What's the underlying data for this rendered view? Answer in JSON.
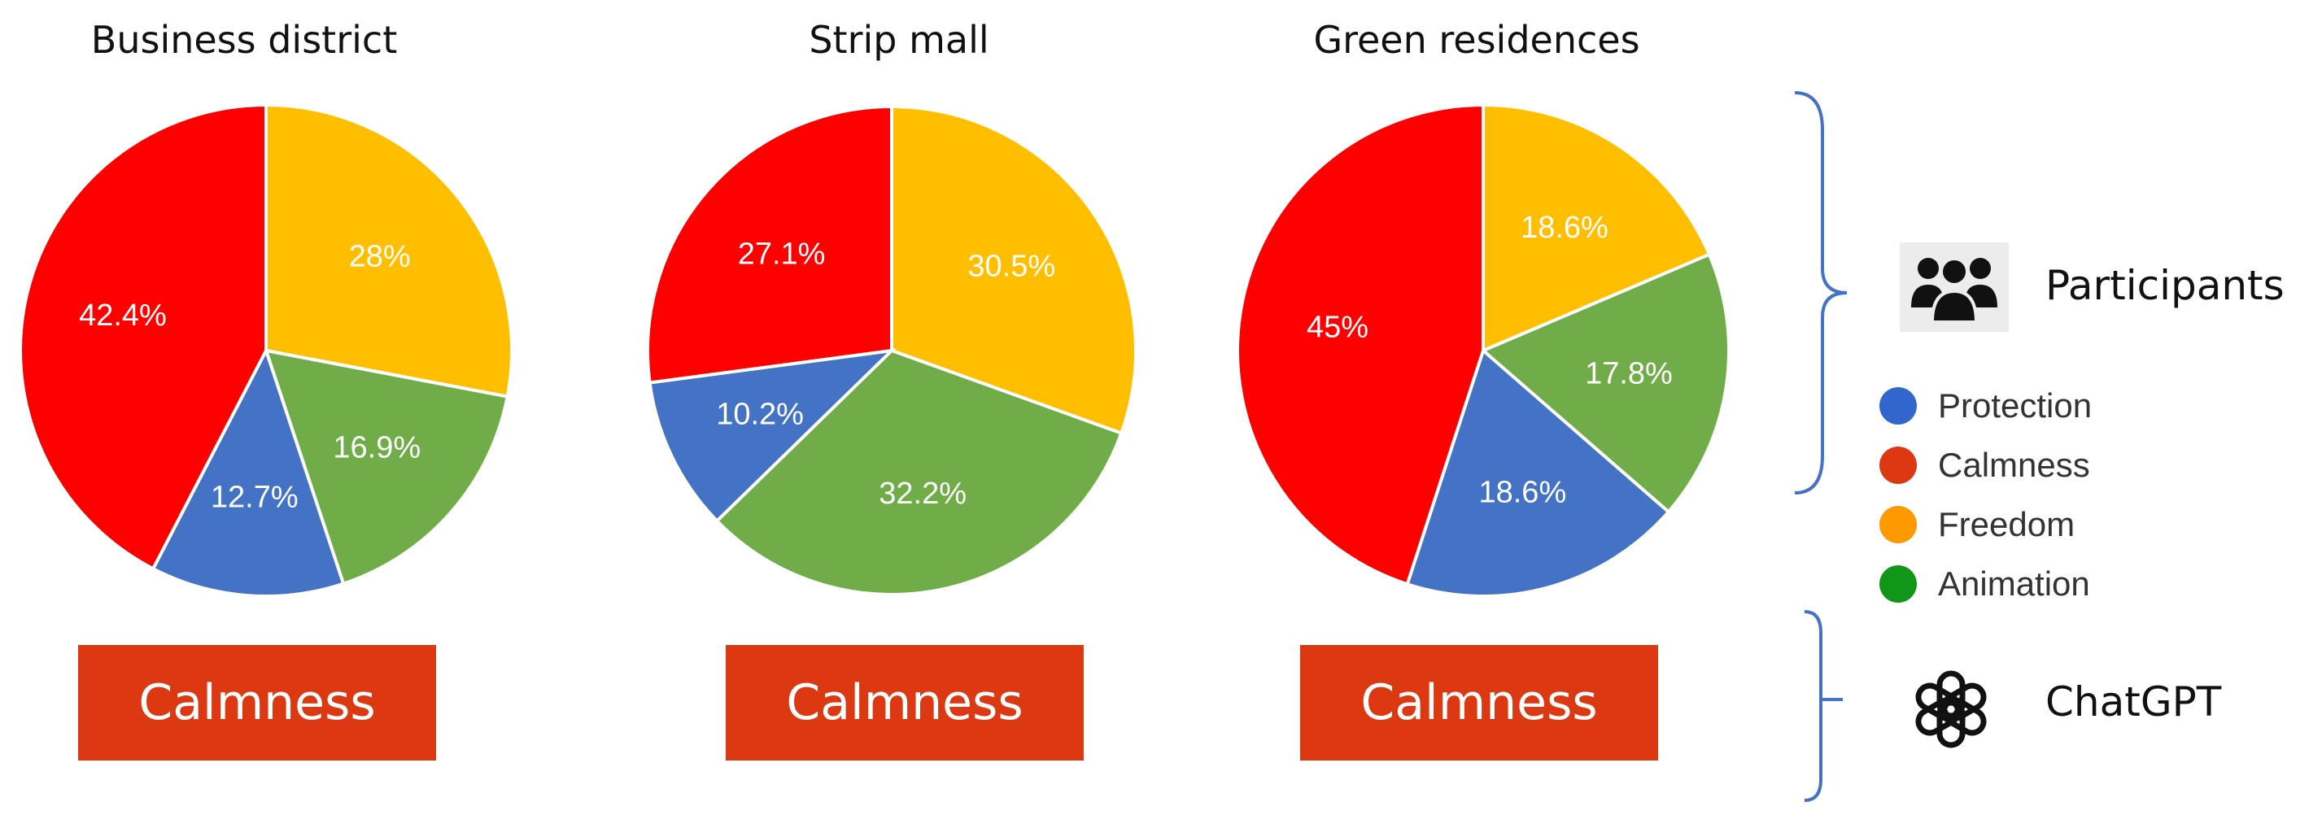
{
  "chart_data": [
    {
      "type": "pie",
      "title": "Business district",
      "slices": [
        {
          "category": "Freedom",
          "value": 28,
          "label": "28%",
          "color": "#ffbe00"
        },
        {
          "category": "Animation",
          "value": 16.9,
          "label": "16.9%",
          "color": "#70ac48"
        },
        {
          "category": "Protection",
          "value": 12.7,
          "label": "12.7%",
          "color": "#4472c4"
        },
        {
          "category": "Calmness",
          "value": 42.4,
          "label": "42.4%",
          "color": "#ff0000"
        }
      ],
      "answer": "Calmness"
    },
    {
      "type": "pie",
      "title": "Strip mall",
      "slices": [
        {
          "category": "Freedom",
          "value": 30.5,
          "label": "30.5%",
          "color": "#ffbe00"
        },
        {
          "category": "Animation",
          "value": 32.2,
          "label": "32.2%",
          "color": "#70ac48"
        },
        {
          "category": "Protection",
          "value": 10.2,
          "label": "10.2%",
          "color": "#4472c4"
        },
        {
          "category": "Calmness",
          "value": 27.1,
          "label": "27.1%",
          "color": "#ff0000"
        }
      ],
      "answer": "Calmness"
    },
    {
      "type": "pie",
      "title": "Green residences",
      "slices": [
        {
          "category": "Freedom",
          "value": 18.6,
          "label": "18.6%",
          "color": "#ffbe00"
        },
        {
          "category": "Animation",
          "value": 17.8,
          "label": "17.8%",
          "color": "#70ac48"
        },
        {
          "category": "Protection",
          "value": 18.6,
          "label": "18.6%",
          "color": "#4472c4"
        },
        {
          "category": "Calmness",
          "value": 45,
          "label": "45%",
          "color": "#ff0000"
        }
      ],
      "answer": "Calmness"
    }
  ],
  "sources": {
    "participants": "Participants",
    "chatgpt": "ChatGPT"
  },
  "legend": [
    {
      "label": "Protection",
      "color": "#3366cc"
    },
    {
      "label": "Calmness",
      "color": "#dc3912"
    },
    {
      "label": "Freedom",
      "color": "#ff9900"
    },
    {
      "label": "Animation",
      "color": "#109618"
    }
  ],
  "colors": {
    "answer_box": "#dc3912",
    "bracket": "#4472c4"
  },
  "icons": [
    "participants-icon",
    "chatgpt-logo-icon"
  ]
}
